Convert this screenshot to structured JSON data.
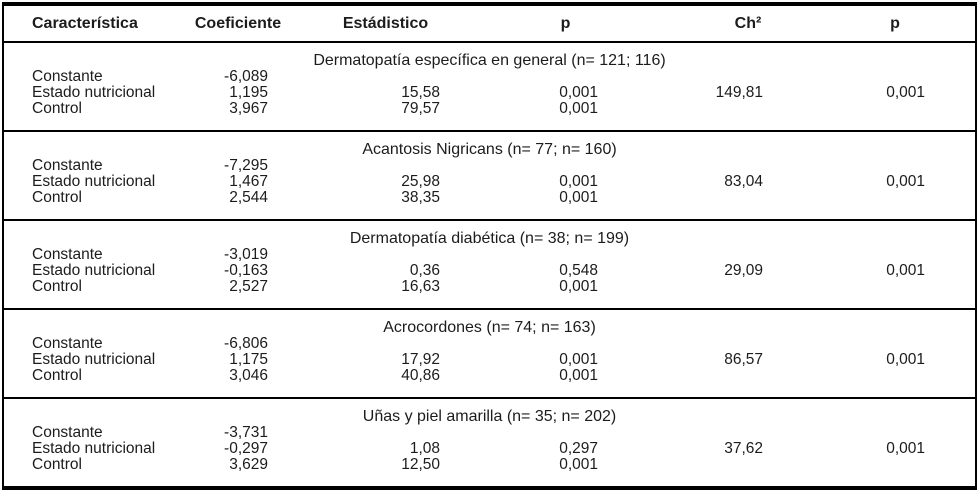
{
  "colors": {
    "text": "#1c1c1c",
    "border": "#000000",
    "background": "#ffffff"
  },
  "table": {
    "columns": {
      "caracteristica": "Característica",
      "coeficiente": "Coeficiente",
      "estadistico": "Estádistico",
      "p": "p",
      "chi2": "Ch²",
      "p_model": "p"
    },
    "sections": [
      {
        "title": "Dermatopatía específica en general (n= 121; 116)",
        "rows": [
          {
            "label": "Constante",
            "coeficiente": "-6,089",
            "estadistico": "",
            "p": "",
            "chi2": "",
            "p_model": ""
          },
          {
            "label": "Estado nutricional",
            "coeficiente": "1,195",
            "estadistico": "15,58",
            "p": "0,001",
            "chi2": "149,81",
            "p_model": "0,001"
          },
          {
            "label": "Control",
            "coeficiente": "3,967",
            "estadistico": "79,57",
            "p": "0,001",
            "chi2": "",
            "p_model": ""
          }
        ]
      },
      {
        "title": "Acantosis Nigricans (n= 77; n= 160)",
        "rows": [
          {
            "label": "Constante",
            "coeficiente": "-7,295",
            "estadistico": "",
            "p": "",
            "chi2": "",
            "p_model": ""
          },
          {
            "label": "Estado nutricional",
            "coeficiente": "1,467",
            "estadistico": "25,98",
            "p": "0,001",
            "chi2": "83,04",
            "p_model": "0,001"
          },
          {
            "label": "Control",
            "coeficiente": "2,544",
            "estadistico": "38,35",
            "p": "0,001",
            "chi2": "",
            "p_model": ""
          }
        ]
      },
      {
        "title": "Dermatopatía diabética (n= 38; n= 199)",
        "rows": [
          {
            "label": "Constante",
            "coeficiente": "-3,019",
            "estadistico": "",
            "p": "",
            "chi2": "",
            "p_model": ""
          },
          {
            "label": "Estado nutricional",
            "coeficiente": "-0,163",
            "estadistico": "0,36",
            "p": "0,548",
            "chi2": "29,09",
            "p_model": "0,001"
          },
          {
            "label": "Control",
            "coeficiente": "2,527",
            "estadistico": "16,63",
            "p": "0,001",
            "chi2": "",
            "p_model": ""
          }
        ]
      },
      {
        "title": "Acrocordones (n= 74; n= 163)",
        "rows": [
          {
            "label": "Constante",
            "coeficiente": "-6,806",
            "estadistico": "",
            "p": "",
            "chi2": "",
            "p_model": ""
          },
          {
            "label": "Estado nutricional",
            "coeficiente": "1,175",
            "estadistico": "17,92",
            "p": "0,001",
            "chi2": "86,57",
            "p_model": "0,001"
          },
          {
            "label": "Control",
            "coeficiente": "3,046",
            "estadistico": "40,86",
            "p": "0,001",
            "chi2": "",
            "p_model": ""
          }
        ]
      },
      {
        "title": "Uñas y piel amarilla (n= 35; n= 202)",
        "rows": [
          {
            "label": "Constante",
            "coeficiente": "-3,731",
            "estadistico": "",
            "p": "",
            "chi2": "",
            "p_model": ""
          },
          {
            "label": "Estado nutricional",
            "coeficiente": "-0,297",
            "estadistico": "1,08",
            "p": "0,297",
            "chi2": "37,62",
            "p_model": "0,001"
          },
          {
            "label": "Control",
            "coeficiente": "3,629",
            "estadistico": "12,50",
            "p": "0,001",
            "chi2": "",
            "p_model": ""
          }
        ]
      }
    ]
  }
}
